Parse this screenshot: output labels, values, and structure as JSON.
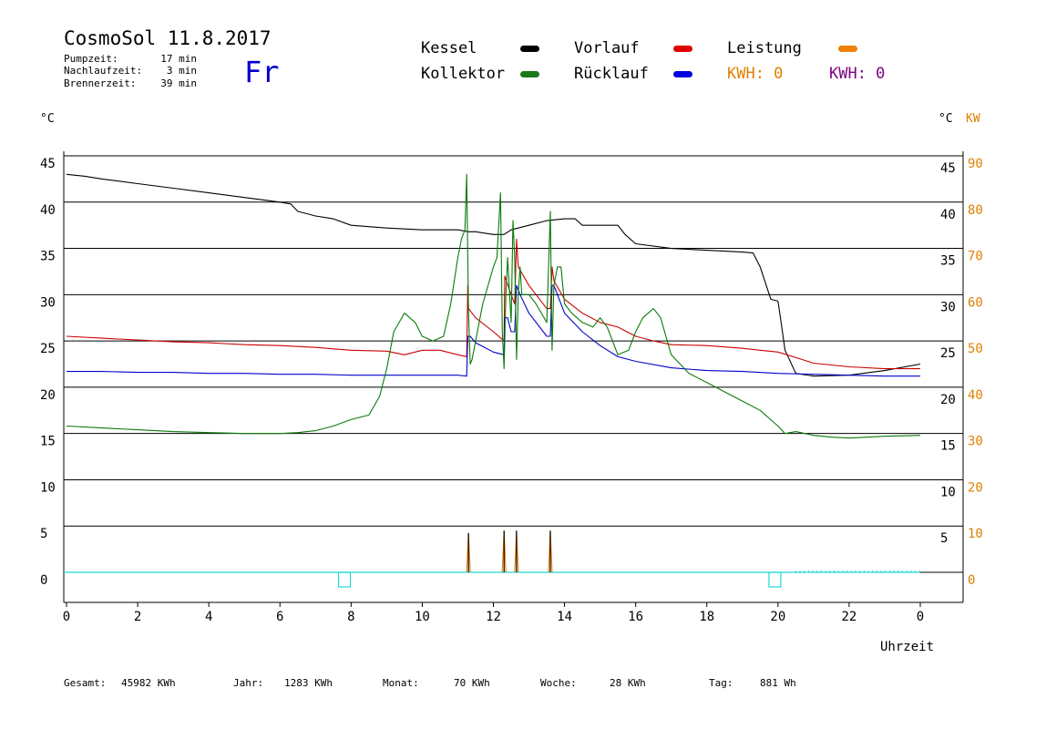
{
  "header": {
    "title": "CosmoSol 11.8.2017",
    "stats": [
      {
        "label": "Pumpzeit:",
        "value": "17 min"
      },
      {
        "label": "Nachlaufzeit:",
        "value": "3 min"
      },
      {
        "label": "Brennerzeit:",
        "value": "39 min"
      }
    ],
    "weekday": "Fr"
  },
  "legend": [
    {
      "label": "Kessel",
      "color": "#000000"
    },
    {
      "label": "Kollektor",
      "color": "#1a7a1a"
    },
    {
      "label": "Vorlauf",
      "color": "#e00000"
    },
    {
      "label": "Rücklauf",
      "color": "#0000e0"
    },
    {
      "label": "Leistung",
      "color": "#f08000"
    },
    {
      "label": "KWH: 0",
      "color": "#e08000",
      "text_color": "#e08000"
    },
    {
      "label": "KWH: 0",
      "color": "#800080",
      "text_color": "#800080"
    }
  ],
  "axes": {
    "left_unit": "°C",
    "right_unit": "°C",
    "right_unit2": "KW",
    "xlabel": "Uhrzeit",
    "left_ticks": [
      "45",
      "40",
      "35",
      "30",
      "25",
      "20",
      "15",
      "10",
      "5",
      "0"
    ],
    "right_ticks": [
      "45",
      "40",
      "35",
      "30",
      "25",
      "20",
      "15",
      "10",
      "5",
      ""
    ],
    "kw_ticks": [
      "90",
      "80",
      "70",
      "60",
      "50",
      "40",
      "30",
      "20",
      "10",
      "0"
    ],
    "x_ticks": [
      "0",
      "2",
      "4",
      "6",
      "8",
      "10",
      "12",
      "14",
      "16",
      "18",
      "20",
      "22",
      "0"
    ]
  },
  "footer": [
    {
      "label": "Gesamt:",
      "value": "45982 KWh"
    },
    {
      "label": "Jahr:",
      "value": "1283 KWh"
    },
    {
      "label": "Monat:",
      "value": "70 KWh"
    },
    {
      "label": "Woche:",
      "value": "28 KWh"
    },
    {
      "label": "Tag:",
      "value": "881 Wh"
    }
  ],
  "chart_data": {
    "type": "line",
    "xlabel": "Uhrzeit",
    "ylabel": "°C",
    "y2label": "KW",
    "xlim": [
      0,
      24
    ],
    "ylim": [
      -2,
      46
    ],
    "y2lim": [
      -4,
      92
    ],
    "grid": true,
    "series": [
      {
        "name": "Kessel",
        "color": "#000000",
        "x": [
          0,
          0.5,
          1,
          2,
          3,
          4,
          5,
          6,
          6.3,
          6.5,
          7,
          7.5,
          8,
          9,
          10,
          11,
          11.3,
          11.5,
          12,
          12.3,
          12.5,
          13,
          13.5,
          14,
          14.3,
          14.5,
          15,
          15.5,
          15.7,
          16,
          17,
          18,
          19,
          19.3,
          19.5,
          19.8,
          20,
          20.05,
          20.2,
          20.5,
          21,
          22,
          23,
          24
        ],
        "y": [
          43,
          42.8,
          42.5,
          42,
          41.5,
          41,
          40.5,
          40,
          39.8,
          39,
          38.5,
          38.2,
          37.5,
          37.2,
          37,
          37,
          36.8,
          36.8,
          36.5,
          36.5,
          37,
          37.5,
          38,
          38.2,
          38.2,
          37.5,
          37.5,
          37.5,
          36.5,
          35.5,
          35,
          34.8,
          34.6,
          34.5,
          33,
          29.5,
          29.3,
          28,
          24,
          21.5,
          21.2,
          21.3,
          21.8,
          22.5
        ]
      },
      {
        "name": "Vorlauf",
        "color": "#cc0000",
        "x": [
          0,
          1,
          2,
          3,
          4,
          5,
          6,
          7,
          8,
          9,
          9.5,
          10,
          10.5,
          11,
          11.25,
          11.28,
          11.3,
          11.5,
          12,
          12.3,
          12.32,
          12.5,
          12.6,
          12.65,
          12.7,
          13,
          13.5,
          13.6,
          13.65,
          13.7,
          14,
          14.5,
          15,
          15.5,
          16,
          16.5,
          17,
          18,
          19,
          19.5,
          20,
          20.5,
          21,
          22,
          23,
          24
        ],
        "y": [
          25.5,
          25.3,
          25.1,
          24.9,
          24.8,
          24.6,
          24.5,
          24.3,
          24,
          23.9,
          23.5,
          24,
          24,
          23.5,
          23.3,
          31,
          28.5,
          27.5,
          26,
          25,
          32,
          30,
          29,
          36,
          33,
          31,
          28.5,
          28.5,
          33,
          31.5,
          29.5,
          28,
          27,
          26.5,
          25.5,
          25,
          24.6,
          24.5,
          24.2,
          24,
          23.8,
          23.2,
          22.6,
          22.2,
          22,
          22
        ]
      },
      {
        "name": "Rücklauf",
        "color": "#0000cc",
        "x": [
          0,
          1,
          2,
          3,
          4,
          5,
          6,
          7,
          8,
          9,
          10,
          11,
          11.25,
          11.28,
          11.35,
          11.5,
          12,
          12.3,
          12.32,
          12.4,
          12.5,
          12.6,
          12.65,
          12.75,
          13,
          13.5,
          13.6,
          13.65,
          13.7,
          14,
          14.5,
          15,
          15.5,
          16,
          17,
          18,
          19,
          20,
          21,
          22,
          23,
          24
        ],
        "y": [
          21.7,
          21.7,
          21.6,
          21.6,
          21.5,
          21.5,
          21.4,
          21.4,
          21.3,
          21.3,
          21.3,
          21.3,
          21.2,
          25.5,
          25.5,
          24.8,
          23.8,
          23.5,
          27.5,
          27.5,
          26,
          26,
          31,
          30,
          28,
          25.5,
          25.5,
          31,
          31,
          28,
          26,
          24.5,
          23.3,
          22.8,
          22.1,
          21.8,
          21.7,
          21.5,
          21.4,
          21.3,
          21.2,
          21.2
        ]
      },
      {
        "name": "Kollektor",
        "color": "#0a7a0a",
        "x": [
          0,
          1,
          2,
          3,
          4,
          5,
          6,
          6.5,
          7,
          7.5,
          8,
          8.5,
          8.8,
          9,
          9.2,
          9.5,
          9.8,
          10,
          10.3,
          10.6,
          10.8,
          11,
          11.1,
          11.2,
          11.25,
          11.3,
          11.35,
          11.4,
          11.5,
          11.7,
          12,
          12.1,
          12.2,
          12.25,
          12.3,
          12.35,
          12.4,
          12.5,
          12.55,
          12.6,
          12.65,
          12.7,
          12.75,
          12.8,
          13,
          13.2,
          13.5,
          13.6,
          13.65,
          13.7,
          13.8,
          13.9,
          14,
          14.2,
          14.5,
          14.8,
          15,
          15.2,
          15.5,
          15.8,
          16,
          16.2,
          16.5,
          16.7,
          17,
          17.5,
          18,
          18.5,
          19,
          19.5,
          20,
          20.2,
          20.5,
          21,
          21.5,
          22,
          22.5,
          23,
          24
        ],
        "y": [
          15.8,
          15.6,
          15.4,
          15.2,
          15.1,
          15,
          15,
          15.1,
          15.3,
          15.8,
          16.5,
          17,
          19,
          22,
          26,
          28,
          27,
          25.5,
          25,
          25.5,
          29,
          34,
          36,
          37,
          43,
          28,
          22.5,
          23,
          25,
          29,
          33,
          34,
          41,
          26,
          22,
          30,
          34,
          27,
          38,
          34,
          23,
          30,
          33,
          30,
          30,
          29,
          27,
          39,
          24,
          31,
          33,
          33,
          29,
          28,
          27,
          26.5,
          27.5,
          26.5,
          23.5,
          24,
          26,
          27.5,
          28.5,
          27.5,
          23.5,
          21.5,
          20.5,
          19.5,
          18.5,
          17.5,
          15.8,
          15,
          15.2,
          14.8,
          14.6,
          14.5,
          14.6,
          14.7,
          14.8
        ]
      }
    ],
    "pumps_kw": {
      "name": "Leistung",
      "color": "#f08000",
      "pulses_x": [
        11.3,
        12.3,
        12.65,
        13.6
      ],
      "pulses_kw": [
        8.5,
        9,
        9,
        9
      ]
    },
    "burner_boxes_x": [
      7.8,
      19.9
    ],
    "annotations": [
      "Fr"
    ]
  }
}
